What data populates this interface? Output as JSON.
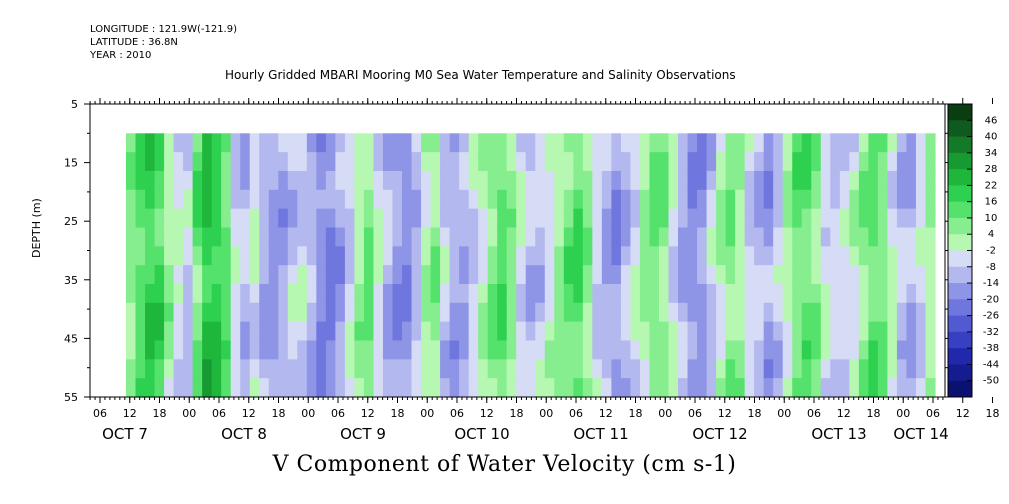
{
  "header": {
    "longitude": "LONGITUDE : 121.9W(-121.9)",
    "latitude": "LATITUDE : 36.8N",
    "year": "YEAR : 2010"
  },
  "chart_data": {
    "type": "heatmap",
    "title": "Hourly Gridded MBARI Mooring M0 Sea Water Temperature and Salinity Observations",
    "xlabel": "",
    "ylabel": "DEPTH (m)",
    "colorbar_title": "V Component of Water Velocity (cm s-1)",
    "ylim": [
      5,
      55
    ],
    "y_reversed": true,
    "y_ticks": [
      5,
      15,
      25,
      35,
      45,
      55
    ],
    "x_hour_ticks": [
      "06",
      "12",
      "18",
      "00",
      "06",
      "12",
      "18",
      "00",
      "06",
      "12",
      "18",
      "00",
      "06",
      "12",
      "18",
      "00",
      "06",
      "12",
      "18",
      "00",
      "06",
      "12",
      "18",
      "00",
      "06",
      "12",
      "18",
      "00",
      "06",
      "12",
      "18",
      "00"
    ],
    "x_day_labels": [
      "OCT  7",
      "OCT  8",
      "OCT  9",
      "OCT 10",
      "OCT 11",
      "OCT 12",
      "OCT 13",
      "OCT 14"
    ],
    "data_depth_range": [
      10,
      55
    ],
    "colorbar_levels": [
      "46",
      "40",
      "34",
      "28",
      "22",
      "16",
      "10",
      "4",
      "-2",
      "-8",
      "-14",
      "-20",
      "-26",
      "-32",
      "-38",
      "-44",
      "-50"
    ],
    "colorbar_colors": [
      "#0a3d12",
      "#0f5a1e",
      "#137a27",
      "#179a31",
      "#1fb63c",
      "#2ed14f",
      "#55e26c",
      "#86ee8f",
      "#b6f7b2",
      "#d6dbf6",
      "#b3b8ef",
      "#8f95e6",
      "#6f76dd",
      "#525ad1",
      "#3840c2",
      "#2128ac",
      "#151c8f",
      "#0b1170"
    ],
    "v_profile_by_time": [
      6,
      14,
      18,
      16,
      4,
      -4,
      -8,
      10,
      22,
      20,
      12,
      -6,
      -10,
      -4,
      -12,
      -16,
      -14,
      -8,
      -6,
      -12,
      -18,
      -20,
      -14,
      -6,
      4,
      8,
      -4,
      -12,
      -16,
      -18,
      -10,
      2,
      6,
      -8,
      -14,
      -12,
      -6,
      0,
      8,
      12,
      6,
      -4,
      -10,
      -8,
      -2,
      4,
      10,
      14,
      6,
      -6,
      -12,
      -16,
      -10,
      -4,
      4,
      10,
      6,
      -4,
      -12,
      -18,
      -16,
      -8,
      2,
      8,
      4,
      -6,
      -10,
      -14,
      -8,
      2,
      10,
      12,
      6,
      -4,
      -8,
      -6,
      -2,
      6,
      12,
      8,
      -2,
      -10,
      -12,
      -6,
      4
    ]
  }
}
